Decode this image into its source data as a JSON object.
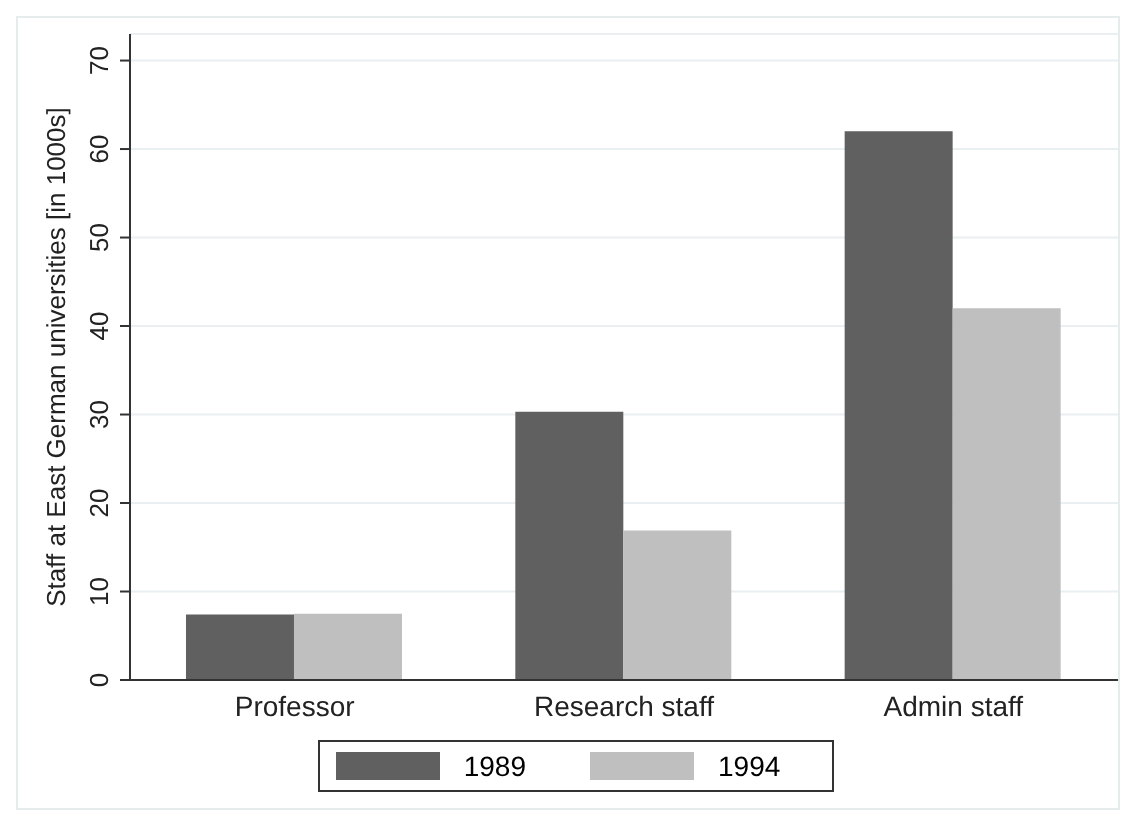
{
  "chart_data": {
    "type": "bar",
    "ylabel": "Staff at East German universities [in 1000s]",
    "categories": [
      "Professor",
      "Research staff",
      "Admin staff"
    ],
    "series": [
      {
        "name": "1989",
        "color": "#606060",
        "values": [
          7.4,
          30.3,
          62.0
        ]
      },
      {
        "name": "1994",
        "color": "#bfbfbf",
        "values": [
          7.5,
          16.9,
          42.0
        ]
      }
    ],
    "ylim": [
      0,
      73
    ],
    "yticks": [
      0,
      10,
      20,
      30,
      40,
      50,
      60,
      70
    ],
    "grid": "y",
    "legend": "bottom"
  }
}
